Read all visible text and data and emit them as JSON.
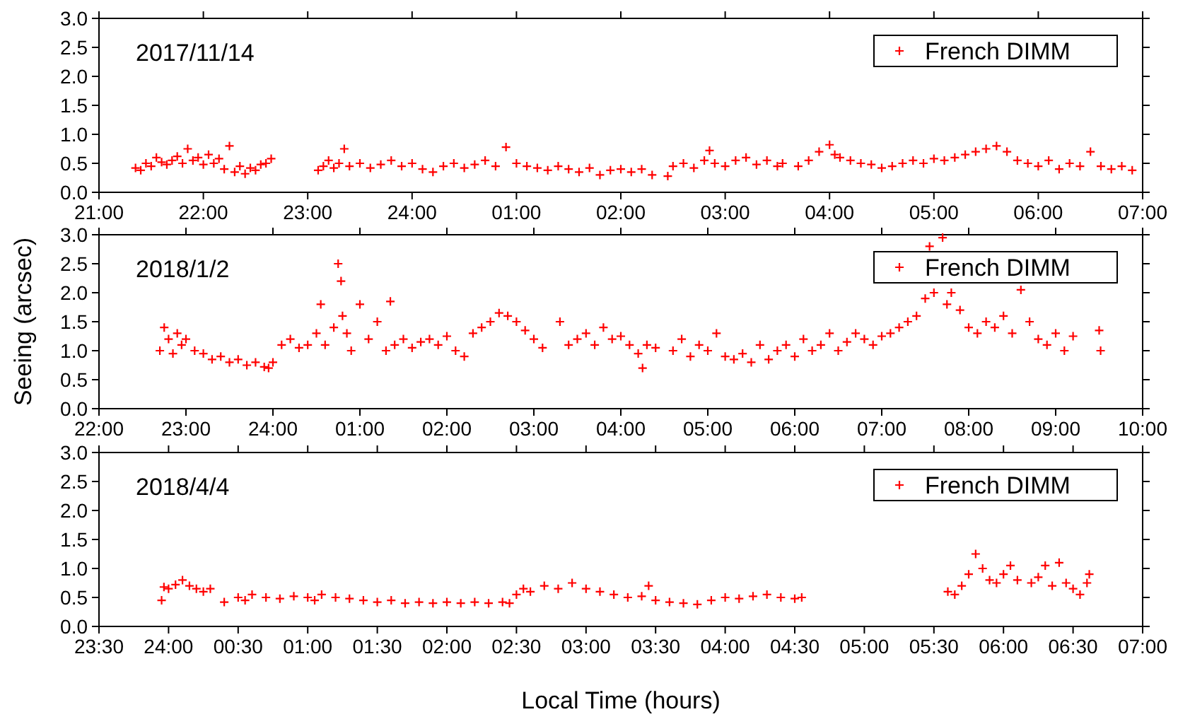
{
  "chart_data": [
    {
      "type": "scatter",
      "annotations": [
        "2017/11/14"
      ],
      "legend": "top right",
      "marker": "cross",
      "grid": false,
      "tick_labels": "y",
      "xlim": [
        "2017-11-14T21:00",
        "2017-11-15T07:00"
      ],
      "xticks": [
        {
          "value": "2017-11-14T21:00",
          "label": "21:00"
        },
        {
          "value": "2017-11-14T22:00",
          "label": "22:00"
        },
        {
          "value": "2017-11-14T23:00",
          "label": "23:00"
        },
        {
          "value": "2017-11-15T00:00",
          "label": "24:00"
        },
        {
          "value": "2017-11-15T01:00",
          "label": "01:00"
        },
        {
          "value": "2017-11-15T02:00",
          "label": "02:00"
        },
        {
          "value": "2017-11-15T03:00",
          "label": "03:00"
        },
        {
          "value": "2017-11-15T04:00",
          "label": "04:00"
        },
        {
          "value": "2017-11-15T05:00",
          "label": "05:00"
        },
        {
          "value": "2017-11-15T06:00",
          "label": "06:00"
        },
        {
          "value": "2017-11-15T07:00",
          "label": "07:00"
        }
      ],
      "ylim": [
        0,
        3
      ],
      "yticks": [
        {
          "value": 0,
          "label": "0.0"
        },
        {
          "value": 0.5,
          "label": "0.5"
        },
        {
          "value": 1,
          "label": "1.0"
        },
        {
          "value": 1.5,
          "label": "1.5"
        },
        {
          "value": 2,
          "label": "2.0"
        },
        {
          "value": 2.5,
          "label": "2.5"
        },
        {
          "value": 3,
          "label": "3.0"
        }
      ],
      "series": [
        {
          "name": "French DIMM",
          "color": "#ff0000",
          "x": [
            "2017-11-14T21:21",
            "2017-11-14T21:24",
            "2017-11-14T21:27",
            "2017-11-14T21:30",
            "2017-11-14T21:33",
            "2017-11-14T21:36",
            "2017-11-14T21:39",
            "2017-11-14T21:42",
            "2017-11-14T21:45",
            "2017-11-14T21:48",
            "2017-11-14T21:51",
            "2017-11-14T21:54",
            "2017-11-14T21:57",
            "2017-11-14T22:00",
            "2017-11-14T22:03",
            "2017-11-14T22:06",
            "2017-11-14T22:09",
            "2017-11-14T22:12",
            "2017-11-14T22:15",
            "2017-11-14T22:18",
            "2017-11-14T22:21",
            "2017-11-14T22:24",
            "2017-11-14T22:27",
            "2017-11-14T22:30",
            "2017-11-14T22:33",
            "2017-11-14T22:36",
            "2017-11-14T22:39",
            "2017-11-14T23:06",
            "2017-11-14T23:09",
            "2017-11-14T23:12",
            "2017-11-14T23:15",
            "2017-11-14T23:18",
            "2017-11-14T23:21",
            "2017-11-14T23:24",
            "2017-11-14T23:30",
            "2017-11-14T23:36",
            "2017-11-14T23:42",
            "2017-11-14T23:48",
            "2017-11-14T23:54",
            "2017-11-15T00:00",
            "2017-11-15T00:06",
            "2017-11-15T00:12",
            "2017-11-15T00:18",
            "2017-11-15T00:24",
            "2017-11-15T00:30",
            "2017-11-15T00:36",
            "2017-11-15T00:42",
            "2017-11-15T00:48",
            "2017-11-15T00:54",
            "2017-11-15T01:00",
            "2017-11-15T01:06",
            "2017-11-15T01:12",
            "2017-11-15T01:18",
            "2017-11-15T01:24",
            "2017-11-15T01:30",
            "2017-11-15T01:36",
            "2017-11-15T01:42",
            "2017-11-15T01:48",
            "2017-11-15T01:54",
            "2017-11-15T02:00",
            "2017-11-15T02:06",
            "2017-11-15T02:12",
            "2017-11-15T02:18",
            "2017-11-15T02:27",
            "2017-11-15T02:30",
            "2017-11-15T02:36",
            "2017-11-15T02:42",
            "2017-11-15T02:48",
            "2017-11-15T02:51",
            "2017-11-15T02:54",
            "2017-11-15T03:00",
            "2017-11-15T03:06",
            "2017-11-15T03:12",
            "2017-11-15T03:18",
            "2017-11-15T03:24",
            "2017-11-15T03:30",
            "2017-11-15T03:33",
            "2017-11-15T03:42",
            "2017-11-15T03:48",
            "2017-11-15T03:54",
            "2017-11-15T04:00",
            "2017-11-15T04:03",
            "2017-11-15T04:06",
            "2017-11-15T04:12",
            "2017-11-15T04:18",
            "2017-11-15T04:24",
            "2017-11-15T04:30",
            "2017-11-15T04:36",
            "2017-11-15T04:42",
            "2017-11-15T04:48",
            "2017-11-15T04:54",
            "2017-11-15T05:00",
            "2017-11-15T05:06",
            "2017-11-15T05:12",
            "2017-11-15T05:18",
            "2017-11-15T05:24",
            "2017-11-15T05:30",
            "2017-11-15T05:36",
            "2017-11-15T05:42",
            "2017-11-15T05:48",
            "2017-11-15T05:54",
            "2017-11-15T06:00",
            "2017-11-15T06:06",
            "2017-11-15T06:12",
            "2017-11-15T06:18",
            "2017-11-15T06:24",
            "2017-11-15T06:30",
            "2017-11-15T06:36",
            "2017-11-15T06:42",
            "2017-11-15T06:48",
            "2017-11-15T06:54"
          ],
          "values": [
            0.42,
            0.38,
            0.5,
            0.45,
            0.6,
            0.52,
            0.48,
            0.55,
            0.62,
            0.5,
            0.75,
            0.55,
            0.6,
            0.48,
            0.65,
            0.5,
            0.58,
            0.4,
            0.8,
            0.35,
            0.45,
            0.32,
            0.42,
            0.38,
            0.48,
            0.5,
            0.58,
            0.38,
            0.45,
            0.55,
            0.42,
            0.5,
            0.75,
            0.45,
            0.5,
            0.42,
            0.48,
            0.55,
            0.45,
            0.5,
            0.4,
            0.35,
            0.45,
            0.5,
            0.42,
            0.48,
            0.55,
            0.45,
            0.78,
            0.5,
            0.45,
            0.42,
            0.38,
            0.45,
            0.4,
            0.35,
            0.42,
            0.3,
            0.38,
            0.4,
            0.35,
            0.4,
            0.3,
            0.28,
            0.45,
            0.5,
            0.42,
            0.55,
            0.72,
            0.5,
            0.45,
            0.55,
            0.6,
            0.48,
            0.55,
            0.45,
            0.5,
            0.45,
            0.55,
            0.7,
            0.82,
            0.65,
            0.6,
            0.55,
            0.5,
            0.48,
            0.42,
            0.45,
            0.5,
            0.55,
            0.5,
            0.58,
            0.55,
            0.6,
            0.65,
            0.7,
            0.75,
            0.8,
            0.7,
            0.55,
            0.5,
            0.45,
            0.55,
            0.4,
            0.5,
            0.45,
            0.7,
            0.45,
            0.4,
            0.45,
            0.38
          ]
        }
      ]
    },
    {
      "type": "scatter",
      "annotations": [
        "2018/1/2"
      ],
      "ylabel": "Seeing (arcsec)",
      "legend": "top right",
      "marker": "cross",
      "grid": false,
      "tick_labels": "y",
      "xlim": [
        "2018-01-02T22:00",
        "2018-01-03T10:00"
      ],
      "xticks": [
        {
          "value": "2018-01-02T22:00",
          "label": "22:00"
        },
        {
          "value": "2018-01-02T23:00",
          "label": "23:00"
        },
        {
          "value": "2018-01-03T00:00",
          "label": "24:00"
        },
        {
          "value": "2018-01-03T01:00",
          "label": "01:00"
        },
        {
          "value": "2018-01-03T02:00",
          "label": "02:00"
        },
        {
          "value": "2018-01-03T03:00",
          "label": "03:00"
        },
        {
          "value": "2018-01-03T04:00",
          "label": "04:00"
        },
        {
          "value": "2018-01-03T05:00",
          "label": "05:00"
        },
        {
          "value": "2018-01-03T06:00",
          "label": "06:00"
        },
        {
          "value": "2018-01-03T07:00",
          "label": "07:00"
        },
        {
          "value": "2018-01-03T08:00",
          "label": "08:00"
        },
        {
          "value": "2018-01-03T09:00",
          "label": "09:00"
        },
        {
          "value": "2018-01-03T10:00",
          "label": "10:00"
        }
      ],
      "ylim": [
        0,
        3
      ],
      "yticks": [
        {
          "value": 0,
          "label": "0.0"
        },
        {
          "value": 0.5,
          "label": "0.5"
        },
        {
          "value": 1,
          "label": "1.0"
        },
        {
          "value": 1.5,
          "label": "1.5"
        },
        {
          "value": 2,
          "label": "2.0"
        },
        {
          "value": 2.5,
          "label": "2.5"
        },
        {
          "value": 3,
          "label": "3.0"
        }
      ],
      "series": [
        {
          "name": "French DIMM",
          "color": "#ff0000",
          "x": [
            "2018-01-02T22:42",
            "2018-01-02T22:45",
            "2018-01-02T22:48",
            "2018-01-02T22:51",
            "2018-01-02T22:54",
            "2018-01-02T22:57",
            "2018-01-02T23:00",
            "2018-01-02T23:06",
            "2018-01-02T23:12",
            "2018-01-02T23:18",
            "2018-01-02T23:24",
            "2018-01-02T23:30",
            "2018-01-02T23:36",
            "2018-01-02T23:42",
            "2018-01-02T23:48",
            "2018-01-02T23:54",
            "2018-01-02T23:57",
            "2018-01-03T00:00",
            "2018-01-03T00:06",
            "2018-01-03T00:12",
            "2018-01-03T00:18",
            "2018-01-03T00:24",
            "2018-01-03T00:30",
            "2018-01-03T00:33",
            "2018-01-03T00:36",
            "2018-01-03T00:42",
            "2018-01-03T00:45",
            "2018-01-03T00:47",
            "2018-01-03T00:48",
            "2018-01-03T00:51",
            "2018-01-03T00:54",
            "2018-01-03T01:00",
            "2018-01-03T01:06",
            "2018-01-03T01:12",
            "2018-01-03T01:18",
            "2018-01-03T01:21",
            "2018-01-03T01:24",
            "2018-01-03T01:30",
            "2018-01-03T01:36",
            "2018-01-03T01:42",
            "2018-01-03T01:48",
            "2018-01-03T01:54",
            "2018-01-03T02:00",
            "2018-01-03T02:06",
            "2018-01-03T02:12",
            "2018-01-03T02:18",
            "2018-01-03T02:24",
            "2018-01-03T02:30",
            "2018-01-03T02:36",
            "2018-01-03T02:42",
            "2018-01-03T02:48",
            "2018-01-03T02:54",
            "2018-01-03T03:00",
            "2018-01-03T03:06",
            "2018-01-03T03:18",
            "2018-01-03T03:24",
            "2018-01-03T03:30",
            "2018-01-03T03:36",
            "2018-01-03T03:42",
            "2018-01-03T03:48",
            "2018-01-03T03:54",
            "2018-01-03T04:00",
            "2018-01-03T04:06",
            "2018-01-03T04:12",
            "2018-01-03T04:15",
            "2018-01-03T04:18",
            "2018-01-03T04:24",
            "2018-01-03T04:36",
            "2018-01-03T04:42",
            "2018-01-03T04:48",
            "2018-01-03T04:54",
            "2018-01-03T05:00",
            "2018-01-03T05:06",
            "2018-01-03T05:12",
            "2018-01-03T05:18",
            "2018-01-03T05:24",
            "2018-01-03T05:30",
            "2018-01-03T05:36",
            "2018-01-03T05:42",
            "2018-01-03T05:48",
            "2018-01-03T05:54",
            "2018-01-03T06:00",
            "2018-01-03T06:06",
            "2018-01-03T06:12",
            "2018-01-03T06:18",
            "2018-01-03T06:24",
            "2018-01-03T06:30",
            "2018-01-03T06:36",
            "2018-01-03T06:42",
            "2018-01-03T06:48",
            "2018-01-03T06:54",
            "2018-01-03T07:00",
            "2018-01-03T07:06",
            "2018-01-03T07:12",
            "2018-01-03T07:18",
            "2018-01-03T07:24",
            "2018-01-03T07:30",
            "2018-01-03T07:33",
            "2018-01-03T07:36",
            "2018-01-03T07:42",
            "2018-01-03T07:45",
            "2018-01-03T07:48",
            "2018-01-03T07:54",
            "2018-01-03T08:00",
            "2018-01-03T08:06",
            "2018-01-03T08:12",
            "2018-01-03T08:18",
            "2018-01-03T08:24",
            "2018-01-03T08:30",
            "2018-01-03T08:36",
            "2018-01-03T08:42",
            "2018-01-03T08:48",
            "2018-01-03T08:54",
            "2018-01-03T09:00",
            "2018-01-03T09:06",
            "2018-01-03T09:12",
            "2018-01-03T09:30",
            "2018-01-03T09:31"
          ],
          "values": [
            1.0,
            1.4,
            1.2,
            0.95,
            1.3,
            1.1,
            1.2,
            1.0,
            0.95,
            0.85,
            0.9,
            0.8,
            0.85,
            0.75,
            0.8,
            0.72,
            0.7,
            0.8,
            1.1,
            1.2,
            1.05,
            1.1,
            1.3,
            1.8,
            1.1,
            1.4,
            2.5,
            2.2,
            1.6,
            1.3,
            1.0,
            1.8,
            1.2,
            1.5,
            1.0,
            1.85,
            1.1,
            1.2,
            1.05,
            1.15,
            1.2,
            1.1,
            1.25,
            1.0,
            0.9,
            1.3,
            1.4,
            1.5,
            1.65,
            1.6,
            1.5,
            1.35,
            1.2,
            1.05,
            1.5,
            1.1,
            1.2,
            1.3,
            1.1,
            1.4,
            1.2,
            1.25,
            1.1,
            0.95,
            0.7,
            1.1,
            1.05,
            1.0,
            1.2,
            0.9,
            1.1,
            1.0,
            1.3,
            0.9,
            0.85,
            0.95,
            0.8,
            1.1,
            0.85,
            1.0,
            1.1,
            0.9,
            1.2,
            1.0,
            1.1,
            1.3,
            1.0,
            1.15,
            1.3,
            1.2,
            1.1,
            1.25,
            1.3,
            1.4,
            1.5,
            1.6,
            1.9,
            2.8,
            2.0,
            2.95,
            1.8,
            2.0,
            1.7,
            1.4,
            1.3,
            1.5,
            1.4,
            1.6,
            1.3,
            2.05,
            1.5,
            1.2,
            1.1,
            1.3,
            1.0,
            1.25,
            1.35,
            1.0
          ]
        }
      ]
    },
    {
      "type": "scatter",
      "annotations": [
        "2018/4/4"
      ],
      "xlabel": "Local Time (hours)",
      "legend": "top right",
      "marker": "cross",
      "grid": false,
      "xlim": [
        "2018-04-04T23:30",
        "2018-04-05T07:00"
      ],
      "xticks": [
        {
          "value": "2018-04-04T23:30",
          "label": "23:30"
        },
        {
          "value": "2018-04-05T00:00",
          "label": "24:00"
        },
        {
          "value": "2018-04-05T00:30",
          "label": "00:30"
        },
        {
          "value": "2018-04-05T01:00",
          "label": "01:00"
        },
        {
          "value": "2018-04-05T01:30",
          "label": "01:30"
        },
        {
          "value": "2018-04-05T02:00",
          "label": "02:00"
        },
        {
          "value": "2018-04-05T02:30",
          "label": "02:30"
        },
        {
          "value": "2018-04-05T03:00",
          "label": "03:00"
        },
        {
          "value": "2018-04-05T03:30",
          "label": "03:30"
        },
        {
          "value": "2018-04-05T04:00",
          "label": "04:00"
        },
        {
          "value": "2018-04-05T04:30",
          "label": "04:30"
        },
        {
          "value": "2018-04-05T05:00",
          "label": "05:00"
        },
        {
          "value": "2018-04-05T05:30",
          "label": "05:30"
        },
        {
          "value": "2018-04-05T06:00",
          "label": "06:00"
        },
        {
          "value": "2018-04-05T06:30",
          "label": "06:30"
        },
        {
          "value": "2018-04-05T07:00",
          "label": "07:00"
        }
      ],
      "ylim": [
        0,
        3
      ],
      "yticks": [
        {
          "value": 0,
          "label": "0.0"
        },
        {
          "value": 0.5,
          "label": "0.5"
        },
        {
          "value": 1,
          "label": "1.0"
        },
        {
          "value": 1.5,
          "label": "1.5"
        },
        {
          "value": 2,
          "label": "2.0"
        },
        {
          "value": 2.5,
          "label": "2.5"
        },
        {
          "value": 3,
          "label": "3.0"
        }
      ],
      "series": [
        {
          "name": "French DIMM",
          "color": "#ff0000",
          "x": [
            "2018-04-04T23:57",
            "2018-04-04T23:58",
            "2018-04-05T00:00",
            "2018-04-05T00:03",
            "2018-04-05T00:06",
            "2018-04-05T00:09",
            "2018-04-05T00:12",
            "2018-04-05T00:15",
            "2018-04-05T00:18",
            "2018-04-05T00:24",
            "2018-04-05T00:30",
            "2018-04-05T00:33",
            "2018-04-05T00:36",
            "2018-04-05T00:42",
            "2018-04-05T00:48",
            "2018-04-05T00:54",
            "2018-04-05T01:00",
            "2018-04-05T01:03",
            "2018-04-05T01:06",
            "2018-04-05T01:12",
            "2018-04-05T01:18",
            "2018-04-05T01:24",
            "2018-04-05T01:30",
            "2018-04-05T01:36",
            "2018-04-05T01:42",
            "2018-04-05T01:48",
            "2018-04-05T01:54",
            "2018-04-05T02:00",
            "2018-04-05T02:06",
            "2018-04-05T02:12",
            "2018-04-05T02:18",
            "2018-04-05T02:24",
            "2018-04-05T02:27",
            "2018-04-05T02:30",
            "2018-04-05T02:33",
            "2018-04-05T02:36",
            "2018-04-05T02:42",
            "2018-04-05T02:48",
            "2018-04-05T02:54",
            "2018-04-05T03:00",
            "2018-04-05T03:06",
            "2018-04-05T03:12",
            "2018-04-05T03:18",
            "2018-04-05T03:24",
            "2018-04-05T03:27",
            "2018-04-05T03:30",
            "2018-04-05T03:36",
            "2018-04-05T03:42",
            "2018-04-05T03:48",
            "2018-04-05T03:54",
            "2018-04-05T04:00",
            "2018-04-05T04:06",
            "2018-04-05T04:12",
            "2018-04-05T04:18",
            "2018-04-05T04:24",
            "2018-04-05T04:30",
            "2018-04-05T04:33",
            "2018-04-05T05:36",
            "2018-04-05T05:39",
            "2018-04-05T05:42",
            "2018-04-05T05:45",
            "2018-04-05T05:48",
            "2018-04-05T05:51",
            "2018-04-05T05:54",
            "2018-04-05T05:57",
            "2018-04-05T06:00",
            "2018-04-05T06:03",
            "2018-04-05T06:06",
            "2018-04-05T06:12",
            "2018-04-05T06:15",
            "2018-04-05T06:18",
            "2018-04-05T06:21",
            "2018-04-05T06:24",
            "2018-04-05T06:27",
            "2018-04-05T06:30",
            "2018-04-05T06:33",
            "2018-04-05T06:36",
            "2018-04-05T06:37"
          ],
          "values": [
            0.45,
            0.68,
            0.65,
            0.72,
            0.8,
            0.7,
            0.65,
            0.6,
            0.65,
            0.42,
            0.5,
            0.45,
            0.55,
            0.5,
            0.48,
            0.52,
            0.5,
            0.45,
            0.55,
            0.5,
            0.48,
            0.45,
            0.42,
            0.45,
            0.4,
            0.42,
            0.4,
            0.42,
            0.4,
            0.42,
            0.4,
            0.42,
            0.4,
            0.55,
            0.65,
            0.6,
            0.7,
            0.65,
            0.75,
            0.65,
            0.6,
            0.55,
            0.5,
            0.52,
            0.7,
            0.45,
            0.42,
            0.4,
            0.38,
            0.45,
            0.5,
            0.48,
            0.52,
            0.55,
            0.5,
            0.48,
            0.5,
            0.6,
            0.55,
            0.7,
            0.9,
            1.25,
            1.0,
            0.8,
            0.75,
            0.9,
            1.05,
            0.8,
            0.75,
            0.85,
            1.05,
            0.7,
            1.1,
            0.75,
            0.65,
            0.55,
            0.75,
            0.9
          ]
        }
      ]
    }
  ]
}
